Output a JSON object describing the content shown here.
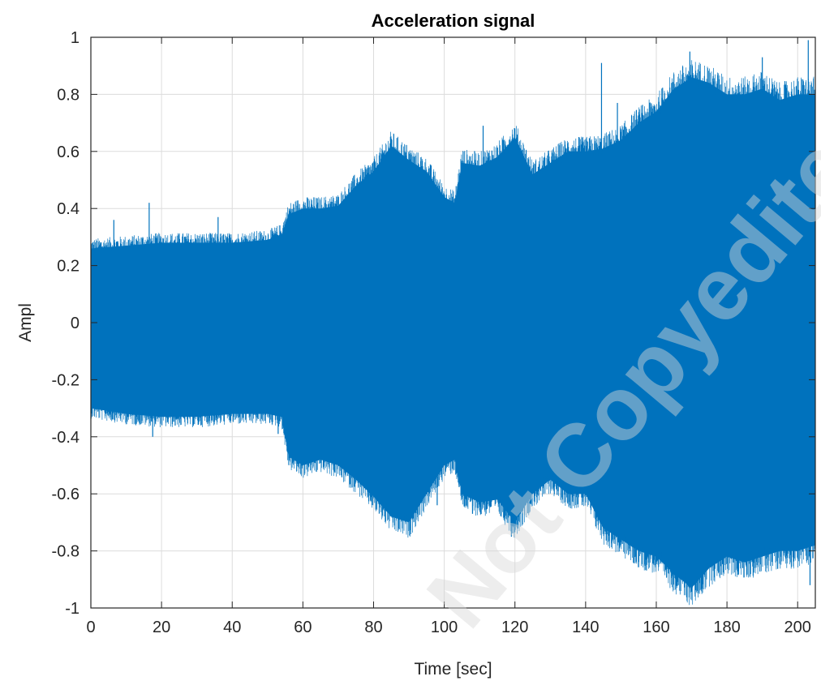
{
  "chart_data": {
    "type": "line",
    "title": "Acceleration signal",
    "xlabel": "Time [sec]",
    "ylabel": "Ampl",
    "xlim": [
      0,
      205
    ],
    "ylim": [
      -1,
      1
    ],
    "xticks": [
      0,
      20,
      40,
      60,
      80,
      100,
      120,
      140,
      160,
      180,
      200
    ],
    "yticks": [
      -1,
      -0.8,
      -0.6,
      -0.4,
      -0.2,
      0,
      0.2,
      0.4,
      0.6,
      0.8,
      1
    ],
    "xtick_labels": [
      "0",
      "20",
      "40",
      "60",
      "80",
      "100",
      "120",
      "140",
      "160",
      "180",
      "200"
    ],
    "ytick_labels": [
      "-1",
      "-0.8",
      "-0.6",
      "-0.4",
      "-0.2",
      "0",
      "0.2",
      "0.4",
      "0.6",
      "0.8",
      "1"
    ],
    "grid": true,
    "line_color": "#0072BD",
    "envelope": {
      "t": [
        0,
        10,
        20,
        30,
        40,
        50,
        54,
        56,
        60,
        65,
        70,
        75,
        80,
        85,
        90,
        95,
        100,
        103,
        105,
        110,
        115,
        120,
        125,
        130,
        135,
        140,
        145,
        150,
        155,
        160,
        165,
        170,
        175,
        180,
        185,
        190,
        195,
        200,
        205
      ],
      "upper": [
        0.26,
        0.27,
        0.28,
        0.28,
        0.28,
        0.29,
        0.31,
        0.38,
        0.4,
        0.4,
        0.41,
        0.48,
        0.53,
        0.62,
        0.57,
        0.53,
        0.44,
        0.42,
        0.56,
        0.55,
        0.58,
        0.65,
        0.52,
        0.56,
        0.6,
        0.6,
        0.61,
        0.64,
        0.7,
        0.74,
        0.82,
        0.86,
        0.84,
        0.8,
        0.8,
        0.82,
        0.78,
        0.8,
        0.8
      ],
      "lower": [
        -0.3,
        -0.32,
        -0.33,
        -0.33,
        -0.32,
        -0.32,
        -0.33,
        -0.47,
        -0.5,
        -0.48,
        -0.5,
        -0.55,
        -0.61,
        -0.68,
        -0.7,
        -0.6,
        -0.5,
        -0.48,
        -0.6,
        -0.63,
        -0.62,
        -0.7,
        -0.6,
        -0.55,
        -0.6,
        -0.6,
        -0.72,
        -0.76,
        -0.8,
        -0.82,
        -0.88,
        -0.93,
        -0.86,
        -0.82,
        -0.84,
        -0.82,
        -0.8,
        -0.8,
        -0.78
      ]
    },
    "spikes": [
      {
        "x": 6.5,
        "y": 0.36
      },
      {
        "x": 16.5,
        "y": 0.42
      },
      {
        "x": 17.5,
        "y": -0.4
      },
      {
        "x": 36,
        "y": 0.37
      },
      {
        "x": 53,
        "y": -0.39
      },
      {
        "x": 98,
        "y": -0.64
      },
      {
        "x": 108,
        "y": -0.67
      },
      {
        "x": 111,
        "y": 0.69
      },
      {
        "x": 119,
        "y": -0.75
      },
      {
        "x": 144.5,
        "y": 0.91
      },
      {
        "x": 149,
        "y": 0.77
      },
      {
        "x": 169.5,
        "y": 0.95
      },
      {
        "x": 171,
        "y": -0.96
      },
      {
        "x": 190,
        "y": 0.93
      },
      {
        "x": 203,
        "y": 0.99
      },
      {
        "x": 203.5,
        "y": -0.92
      }
    ],
    "watermark": "Not Copyedited"
  }
}
